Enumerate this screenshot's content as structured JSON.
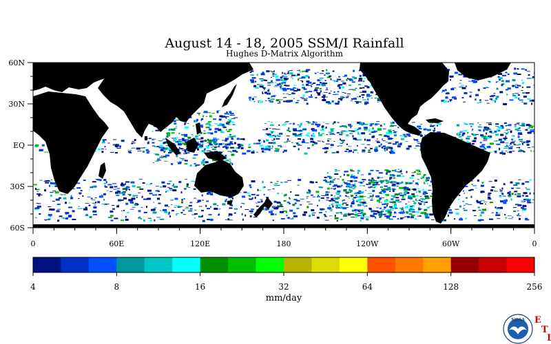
{
  "header": {
    "title": "August 14 - 18, 2005 SSM/I Rainfall",
    "subtitle": "Hughes D-Matrix Algorithm"
  },
  "map": {
    "lat_labels": [
      "60N",
      "30N",
      "EQ",
      "30S",
      "60S"
    ],
    "lon_labels": [
      "0",
      "60E",
      "120E",
      "180",
      "120W",
      "60W",
      "0"
    ],
    "colors": {
      "land": "#000000",
      "ocean": "#ffffff"
    }
  },
  "colorbar": {
    "colors": [
      "#00107e",
      "#0030c4",
      "#0050ff",
      "#00989c",
      "#00c8c8",
      "#00ffff",
      "#009000",
      "#00c000",
      "#00ff00",
      "#b4b400",
      "#dcdc00",
      "#ffff00",
      "#ff5000",
      "#ff7800",
      "#ffa000",
      "#960000",
      "#c80000",
      "#ff0000"
    ],
    "tick_labels": [
      "4",
      "8",
      "16",
      "32",
      "64",
      "128",
      "256"
    ],
    "unit_label": "mm/day"
  },
  "branding": {
    "noaa_logo_text": "NOAA",
    "etl_letters": [
      "E",
      "T",
      "L"
    ],
    "logo_colors": {
      "ring": "#ffffff",
      "sky": "#1b5fae",
      "gull": "#ffffff"
    }
  }
}
